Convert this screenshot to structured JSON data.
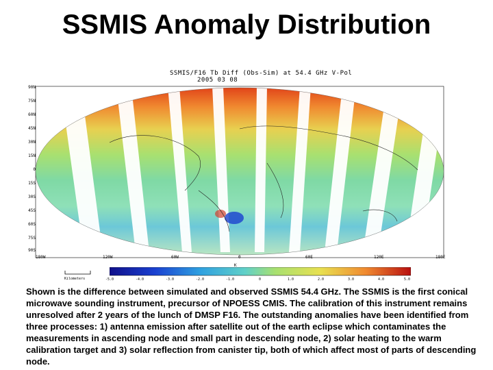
{
  "slide": {
    "title": "SSMIS Anomaly Distribution",
    "caption": "Shown is the difference between simulated and observed  SSMIS 54.4 GHz. The SSMIS is the first conical microwave sounding instrument, precursor of NPOESS CMIS. The calibration of this instrument remains unresolved after 2 years of the lunch of DMSP F16. The outstanding anomalies have been identified from three processes: 1) antenna emission after satellite out of the earth eclipse which contaminates the measurements in ascending node and small part in descending node, 2) solar heating to the warm calibration target and 3) solar reflection from canister tip, both of which affect most of parts of descending node."
  },
  "figure": {
    "plot_title": "SSMIS/F16 Tb Diff (Obs-Sim) at 54.4 GHz V-Pol",
    "plot_date": "2005 03 08",
    "lat_labels": [
      "90N",
      "75N",
      "60N",
      "45N",
      "30N",
      "15N",
      "0",
      "15S",
      "30S",
      "45S",
      "60S",
      "75S",
      "90S"
    ],
    "lon_labels": [
      "180W",
      "120W",
      "60W",
      "0",
      "60E",
      "120E",
      "180E"
    ],
    "colorbar_unit": "K",
    "colorbar_ticks": [
      "-5.0",
      "-4.0",
      "-3.0",
      "-2.0",
      "-1.0",
      "0",
      "1.0",
      "2.0",
      "3.0",
      "4.0",
      "5.0"
    ],
    "scale_label": "Kilometers",
    "colors": {
      "background": "#ffffff",
      "ocean_zero": "#7fd9a5",
      "warm_anomaly": "#e0401a",
      "cold_anomaly": "#1a40d0"
    }
  }
}
